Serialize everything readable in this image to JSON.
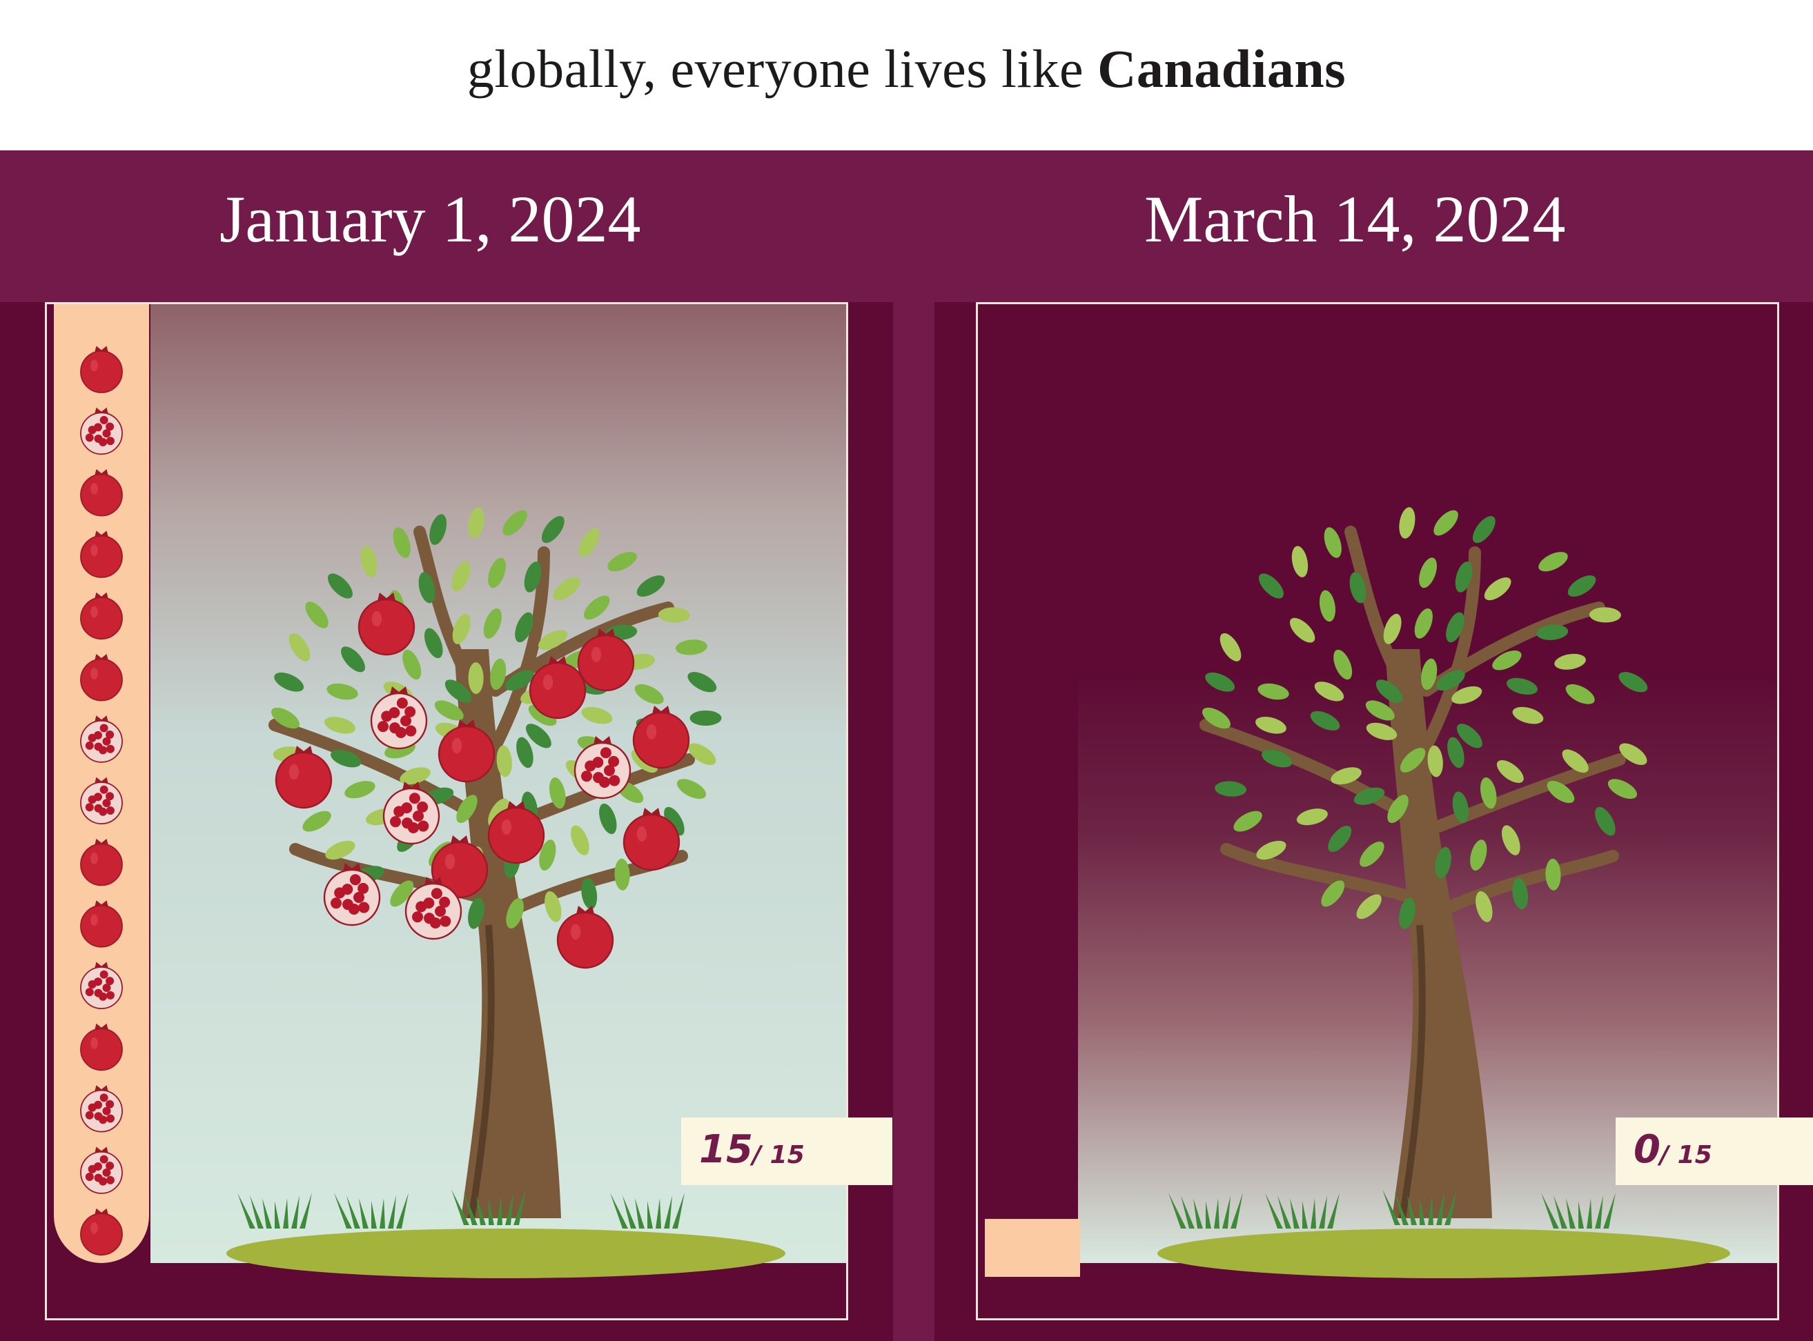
{
  "header": {
    "headline_prefix": "globally, everyone lives like",
    "headline_country": "Canadians"
  },
  "panels": [
    {
      "date": "January 1, 2024",
      "fruit_remaining": "15",
      "fruit_total": "/ 15",
      "fruit_fraction_remaining": 1.0
    },
    {
      "date": "March 14, 2024",
      "fruit_remaining": "0",
      "fruit_total": "/ 15",
      "fruit_fraction_remaining": 0.0
    }
  ],
  "colors": {
    "band": "#721a49",
    "panel_bg": "#5e0a34",
    "bar": "#fbcba4",
    "counter_bg": "#faf6e0",
    "pomegranate": "#c92233",
    "trunk": "#7a5a3a",
    "leaf_light": "#a8c85a",
    "leaf_dark": "#3f8a3a",
    "ground": "#a4b33c"
  },
  "icons": {
    "fruit": "pomegranate-icon",
    "fruit_cut": "pomegranate-half-icon",
    "tree": "tree-icon"
  }
}
